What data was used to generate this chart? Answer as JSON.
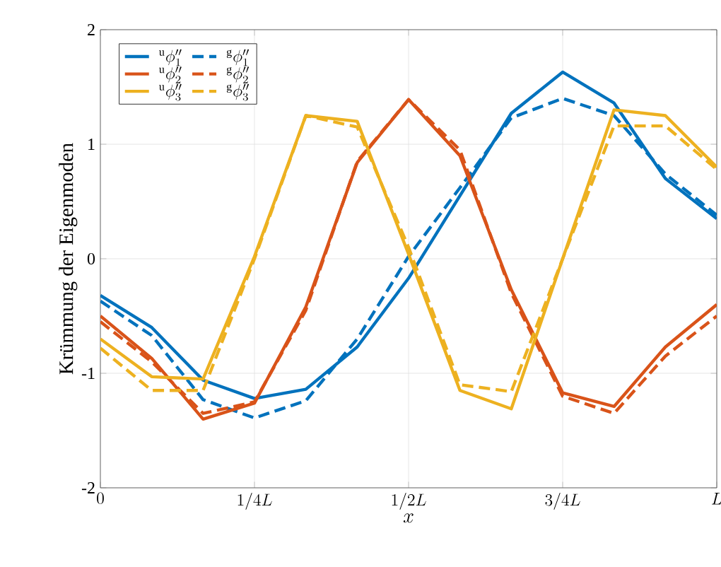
{
  "chart_data": {
    "type": "line",
    "ylabel": "Krümmung der Eigenmoden",
    "xlabel": "x",
    "categories": [
      "0",
      null,
      null,
      "1/4L",
      null,
      null,
      "1/2L",
      null,
      null,
      "3/4L",
      null,
      null,
      "L"
    ],
    "series": [
      {
        "name": "{}^{\\mathrm{u}}\\phi_1''",
        "color": "#0072bd",
        "line_style": "solid",
        "values": [
          -0.32,
          -0.6,
          -1.06,
          -1.22,
          -1.14,
          -0.77,
          -0.17,
          0.55,
          1.27,
          1.63,
          1.36,
          0.7,
          0.35
        ]
      },
      {
        "name": "{}^{\\mathrm{g}}\\phi_1''",
        "color": "#0072bd",
        "line_style": "dashed",
        "values": [
          -0.37,
          -0.67,
          -1.23,
          -1.39,
          -1.24,
          -0.7,
          0.02,
          0.62,
          1.23,
          1.4,
          1.25,
          0.74,
          0.38
        ]
      },
      {
        "name": "{}^{\\mathrm{u}}\\phi_2''",
        "color": "#d95319",
        "line_style": "solid",
        "values": [
          -0.5,
          -0.87,
          -1.4,
          -1.26,
          -0.42,
          0.84,
          1.39,
          0.9,
          -0.27,
          -1.17,
          -1.29,
          -0.77,
          -0.4
        ]
      },
      {
        "name": "{}^{\\mathrm{g}}\\phi_2''",
        "color": "#d95319",
        "line_style": "dashed",
        "values": [
          -0.55,
          -0.9,
          -1.35,
          -1.25,
          -0.45,
          0.85,
          1.39,
          0.95,
          -0.3,
          -1.2,
          -1.35,
          -0.85,
          -0.5
        ]
      },
      {
        "name": "{}^{\\mathrm{u}}\\phi_3''",
        "color": "#edb120",
        "line_style": "solid",
        "values": [
          -0.7,
          -1.03,
          -1.05,
          0.02,
          1.25,
          1.2,
          0.04,
          -1.15,
          -1.31,
          0.0,
          1.3,
          1.25,
          0.8
        ]
      },
      {
        "name": "{}^{\\mathrm{g}}\\phi_3''",
        "color": "#edb120",
        "line_style": "dashed",
        "values": [
          -0.78,
          -1.15,
          -1.15,
          0.0,
          1.25,
          1.15,
          0.1,
          -1.1,
          -1.16,
          0.0,
          1.16,
          1.16,
          0.78
        ]
      }
    ],
    "ylim": [
      -2,
      2
    ],
    "yticks": [
      -2,
      -1,
      0,
      1,
      2
    ],
    "grid": true,
    "legend": "top left"
  }
}
